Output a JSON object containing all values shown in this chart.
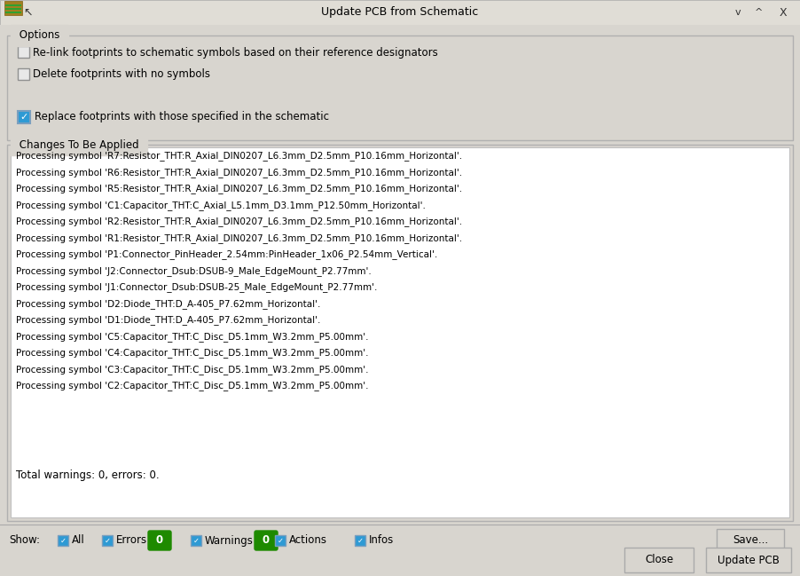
{
  "title": "Update PCB from Schematic",
  "bg_color": "#d8d5cf",
  "dialog_bg": "#d8d5cf",
  "white": "#ffffff",
  "dark_text": "#000000",
  "options_label": "Options",
  "checkbox1_text": "Re-link footprints to schematic symbols based on their reference designators",
  "checkbox1_checked": false,
  "checkbox2_text": "Delete footprints with no symbols",
  "checkbox2_checked": false,
  "checkbox3_text": "Replace footprints with those specified in the schematic",
  "checkbox3_checked": true,
  "changes_label": "Changes To Be Applied",
  "log_lines": [
    "Processing symbol 'R7:Resistor_THT:R_Axial_DIN0207_L6.3mm_D2.5mm_P10.16mm_Horizontal'.",
    "Processing symbol 'R6:Resistor_THT:R_Axial_DIN0207_L6.3mm_D2.5mm_P10.16mm_Horizontal'.",
    "Processing symbol 'R5:Resistor_THT:R_Axial_DIN0207_L6.3mm_D2.5mm_P10.16mm_Horizontal'.",
    "Processing symbol 'C1:Capacitor_THT:C_Axial_L5.1mm_D3.1mm_P12.50mm_Horizontal'.",
    "Processing symbol 'R2:Resistor_THT:R_Axial_DIN0207_L6.3mm_D2.5mm_P10.16mm_Horizontal'.",
    "Processing symbol 'R1:Resistor_THT:R_Axial_DIN0207_L6.3mm_D2.5mm_P10.16mm_Horizontal'.",
    "Processing symbol 'P1:Connector_PinHeader_2.54mm:PinHeader_1x06_P2.54mm_Vertical'.",
    "Processing symbol 'J2:Connector_Dsub:DSUB-9_Male_EdgeMount_P2.77mm'.",
    "Processing symbol 'J1:Connector_Dsub:DSUB-25_Male_EdgeMount_P2.77mm'.",
    "Processing symbol 'D2:Diode_THT:D_A-405_P7.62mm_Horizontal'.",
    "Processing symbol 'D1:Diode_THT:D_A-405_P7.62mm_Horizontal'.",
    "Processing symbol 'C5:Capacitor_THT:C_Disc_D5.1mm_W3.2mm_P5.00mm'.",
    "Processing symbol 'C4:Capacitor_THT:C_Disc_D5.1mm_W3.2mm_P5.00mm'.",
    "Processing symbol 'C3:Capacitor_THT:C_Disc_D5.1mm_W3.2mm_P5.00mm'.",
    "Processing symbol 'C2:Capacitor_THT:C_Disc_D5.1mm_W3.2mm_P5.00mm'."
  ],
  "summary_text": "Total warnings: 0, errors: 0.",
  "show_label": "Show:",
  "show_items": [
    "All",
    "Errors",
    "Warnings",
    "Actions",
    "Infos"
  ],
  "badge_color": "#1e8a00",
  "badge_text_color": "#ffffff",
  "badge_value": "0",
  "save_btn": "Save...",
  "close_btn": "Close",
  "update_btn": "Update PCB",
  "titlebar_bg": "#e0ddd6",
  "checkbox_blue": "#2e9ad4",
  "checkbox_border": "#7a9fbf"
}
